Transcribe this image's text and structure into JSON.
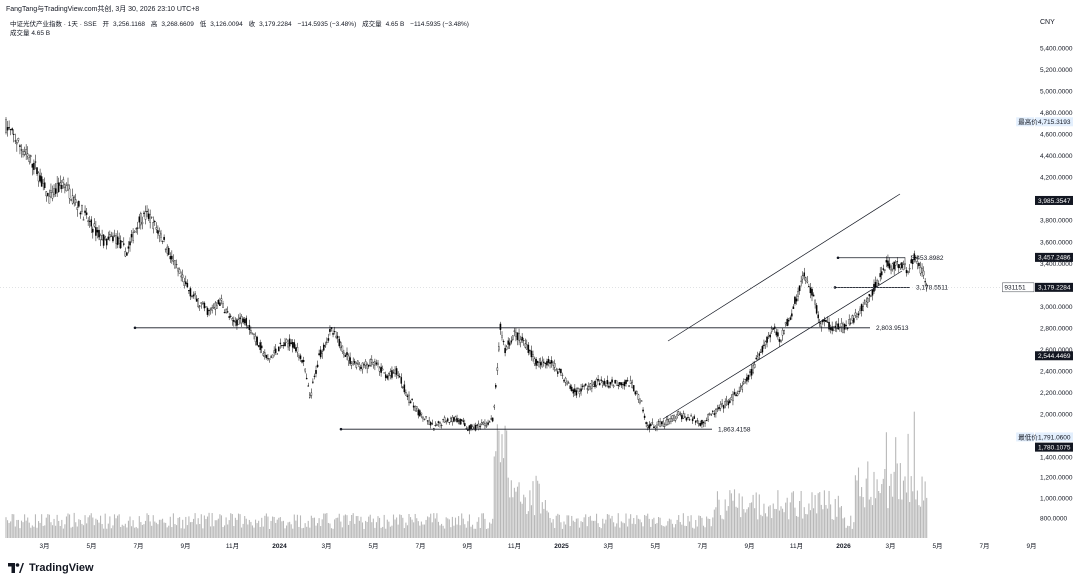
{
  "header": {
    "credit": "FangTang与TradingView.com共创, 3月 30, 2026 23:10 UTC+8",
    "symbol": "中证光伏产业指数 · 1天 · SSE",
    "open_label": "开",
    "open": "3,256.1168",
    "high_label": "高",
    "high": "3,268.6609",
    "low_label": "低",
    "low": "3,126.0094",
    "close_label": "收",
    "close": "3,179.2284",
    "change": "−114.5935 (−3.48%)",
    "volume_label": "成交量",
    "volume": "4.65 B",
    "volume_change": "−114.5935 (−3.48%)",
    "volume_row_label": "成交量",
    "volume_row_value": "4.65 B",
    "currency": "CNY"
  },
  "footer": {
    "brand": "TradingView"
  },
  "colors": {
    "candle": "#000000",
    "volume": "#b8b8b8",
    "line": "#131722",
    "tag_dark": "#131722",
    "tag_light": "#e3effd"
  },
  "chart_data": {
    "type": "candlestick",
    "x_tick_labels": [
      "3月",
      "5月",
      "7月",
      "9月",
      "11月",
      "2024",
      "3月",
      "5月",
      "7月",
      "9月",
      "11月",
      "2025",
      "3月",
      "5月",
      "7月",
      "9月",
      "11月",
      "2026",
      "3月",
      "5月",
      "7月",
      "9月"
    ],
    "x_tick_positions_months": [
      2,
      4,
      6,
      8,
      10,
      12,
      14,
      16,
      18,
      20,
      22,
      24,
      26,
      28,
      30,
      32,
      34,
      36,
      38,
      40,
      42,
      44
    ],
    "price_ticks": [
      "5,400.0000",
      "5,200.0000",
      "5,000.0000",
      "4,800.0000",
      "4,600.0000",
      "4,400.0000",
      "4,200.0000",
      "4,000.0000",
      "3,800.0000",
      "3,600.0000",
      "3,400.0000",
      "3,200.0000",
      "3,000.0000",
      "2,800.0000",
      "2,600.0000",
      "2,400.0000",
      "2,200.0000",
      "2,000.0000",
      "1,800.0000"
    ],
    "price_range": [
      1800,
      5400
    ],
    "volume_ticks": [
      "1,600.0000",
      "1,400.0000",
      "1,200.0000",
      "1,000.0000",
      "800.0000"
    ],
    "price_path": [
      [
        0,
        4550
      ],
      [
        0.3,
        4700
      ],
      [
        1,
        4480
      ],
      [
        1.6,
        4300
      ],
      [
        2.2,
        4000
      ],
      [
        2.8,
        4150
      ],
      [
        3.4,
        3950
      ],
      [
        4,
        3750
      ],
      [
        4.6,
        3600
      ],
      [
        5,
        3650
      ],
      [
        5.5,
        3500
      ],
      [
        6,
        3800
      ],
      [
        6.4,
        3850
      ],
      [
        7,
        3650
      ],
      [
        7.5,
        3400
      ],
      [
        8,
        3200
      ],
      [
        8.5,
        3050
      ],
      [
        9,
        2950
      ],
      [
        9.5,
        3050
      ],
      [
        10,
        2850
      ],
      [
        10.5,
        2900
      ],
      [
        11,
        2700
      ],
      [
        11.5,
        2500
      ],
      [
        12,
        2620
      ],
      [
        12.5,
        2680
      ],
      [
        13,
        2500
      ],
      [
        13.3,
        2150
      ],
      [
        13.7,
        2550
      ],
      [
        14.2,
        2780
      ],
      [
        14.6,
        2650
      ],
      [
        15,
        2500
      ],
      [
        15.5,
        2450
      ],
      [
        16,
        2480
      ],
      [
        16.6,
        2350
      ],
      [
        17,
        2400
      ],
      [
        17.5,
        2150
      ],
      [
        18,
        2000
      ],
      [
        18.6,
        1870
      ],
      [
        19,
        1950
      ],
      [
        19.6,
        1960
      ],
      [
        20,
        1870
      ],
      [
        20.6,
        1890
      ],
      [
        21.1,
        1950
      ],
      [
        21.4,
        2800
      ],
      [
        21.6,
        2600
      ],
      [
        22,
        2750
      ],
      [
        22.5,
        2650
      ],
      [
        23,
        2450
      ],
      [
        23.5,
        2500
      ],
      [
        24,
        2380
      ],
      [
        24.5,
        2200
      ],
      [
        25,
        2250
      ],
      [
        25.5,
        2300
      ],
      [
        26,
        2280
      ],
      [
        26.5,
        2300
      ],
      [
        27,
        2280
      ],
      [
        27.4,
        2100
      ],
      [
        27.6,
        1900
      ],
      [
        28,
        1900
      ],
      [
        28.4,
        1920
      ],
      [
        29,
        2000
      ],
      [
        29.5,
        1960
      ],
      [
        30,
        1920
      ],
      [
        30.4,
        2000
      ],
      [
        31,
        2100
      ],
      [
        31.5,
        2200
      ],
      [
        32,
        2350
      ],
      [
        32.5,
        2600
      ],
      [
        33,
        2800
      ],
      [
        33.3,
        2700
      ],
      [
        33.8,
        2950
      ],
      [
        34.3,
        3300
      ],
      [
        34.7,
        3100
      ],
      [
        35,
        2850
      ],
      [
        35.5,
        2820
      ],
      [
        36,
        2800
      ],
      [
        36.5,
        2900
      ],
      [
        37,
        3050
      ],
      [
        37.4,
        3200
      ],
      [
        37.8,
        3400
      ],
      [
        38.2,
        3380
      ],
      [
        38.7,
        3350
      ],
      [
        39,
        3450
      ],
      [
        39.3,
        3350
      ],
      [
        39.6,
        3179
      ]
    ],
    "annotations": [
      {
        "label": "2,803.9513",
        "price": 2803.9513
      },
      {
        "label": "1,863.4158",
        "price": 1863.4158
      },
      {
        "label": "3,453.8982",
        "price": 3453.8982
      },
      {
        "label": "3,178.5511",
        "price": 3178.5511
      }
    ],
    "price_tags": [
      {
        "value": "4,715.3193",
        "label": "最高价",
        "price": 4715.3193,
        "style": "light"
      },
      {
        "value": "3,985.3547",
        "label": "",
        "price": 3985.3547,
        "style": "dark"
      },
      {
        "value": "3,457.2486",
        "label": "",
        "price": 3457.2486,
        "style": "dark"
      },
      {
        "value": "3,179.2284",
        "label": "931151",
        "price": 3179.2284,
        "style": "dark"
      },
      {
        "value": "2,544.4469",
        "label": "",
        "price": 2544.4469,
        "style": "dark"
      },
      {
        "value": "1,791.0600",
        "label": "最低价",
        "price": 1791.06,
        "style": "light"
      },
      {
        "value": "1,780.1075",
        "label": "",
        "price": 1780.1075,
        "style": "dark"
      }
    ]
  }
}
